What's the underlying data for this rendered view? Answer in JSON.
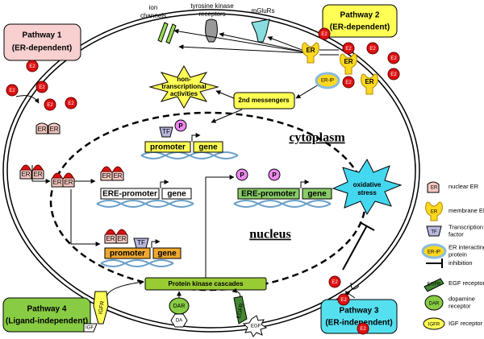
{
  "pathways": [
    {
      "title": "Pathway 1",
      "subtitle": "(ER-dependent)"
    },
    {
      "title": "Pathway 2",
      "subtitle": "(ER-dependent)"
    },
    {
      "title": "Pathway 3",
      "subtitle": "(ER-independent)"
    },
    {
      "title": "Pathway 4",
      "subtitle": "(Ligand-independent)"
    }
  ],
  "membrane": {
    "ion_channels": [
      "ion",
      "channels"
    ],
    "tk_receptors": [
      "tyrosine kinase",
      "receptors"
    ],
    "mglurs": "mGluRs"
  },
  "compartments": {
    "cytoplasm": "cytoplasm",
    "nucleus": "nucleus"
  },
  "nodes": {
    "non_transcriptional": [
      "non-",
      "transcriptional",
      "activities"
    ],
    "second_messengers": "2nd messengers",
    "protein_kinase": "Protein kinase cascades",
    "oxidative_stress": [
      "oxidative",
      "stress"
    ]
  },
  "symbols": {
    "e2": "E2",
    "er": "ER",
    "tf": "TF",
    "p": "P",
    "er_ip": "ER-IP",
    "igfr": "IGFR",
    "igf": "IGF",
    "dar": "DAR",
    "da": "DA",
    "egfr": "EGFR",
    "egf": "EGF"
  },
  "genes": [
    {
      "promoter": "promoter",
      "gene": "gene"
    },
    {
      "promoter": "ERE-promoter",
      "gene": "gene"
    },
    {
      "promoter": "ERE-promoter",
      "gene": "gene"
    },
    {
      "promoter": "promoter",
      "gene": "gene"
    }
  ],
  "legend": [
    {
      "icon": "ER",
      "label": [
        "nuclear ER"
      ]
    },
    {
      "icon": "ER",
      "label": [
        "membrane ER"
      ]
    },
    {
      "icon": "TF",
      "label": [
        "Transcription",
        "factor"
      ]
    },
    {
      "icon": "ER-IP",
      "label": [
        "ER interacting",
        "protein"
      ]
    },
    {
      "label": [
        "inhibition"
      ]
    },
    {
      "icon": "EGFR",
      "label": [
        "EGF receptor"
      ]
    },
    {
      "icon": "DAR",
      "label": [
        "dopamine",
        "receptor"
      ]
    },
    {
      "icon": "IGFR",
      "label": [
        "IGF receptor"
      ]
    }
  ]
}
